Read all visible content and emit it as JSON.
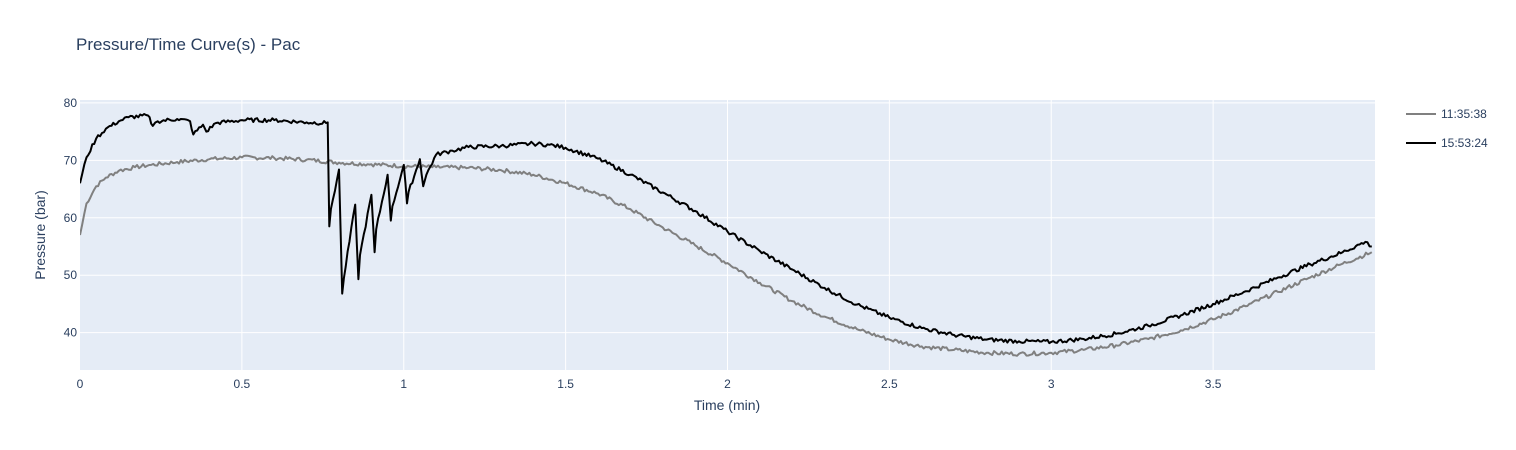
{
  "chart_data": {
    "type": "line",
    "title": "Pressure/Time Curve(s) - Pac",
    "xlabel": "Time (min)",
    "ylabel": "Pressure (bar)",
    "xlim": [
      0,
      4.0
    ],
    "ylim": [
      33.5,
      80.5
    ],
    "x_ticks": [
      0,
      0.5,
      1,
      1.5,
      2,
      2.5,
      3,
      3.5
    ],
    "x_tick_labels": [
      "0",
      "0.5",
      "1",
      "1.5",
      "2",
      "2.5",
      "3",
      "3.5"
    ],
    "y_ticks": [
      40,
      50,
      60,
      70,
      80
    ],
    "y_tick_labels": [
      "40",
      "50",
      "60",
      "70",
      "80"
    ],
    "grid": true,
    "legend_position": "top-right",
    "series": [
      {
        "name": "11:35:38",
        "color": "#808080",
        "x": [
          0,
          0.02,
          0.05,
          0.08,
          0.12,
          0.17,
          0.22,
          0.3,
          0.4,
          0.5,
          0.6,
          0.7,
          0.8,
          0.9,
          1.0,
          1.1,
          1.2,
          1.3,
          1.4,
          1.5,
          1.6,
          1.7,
          1.8,
          1.9,
          2.0,
          2.1,
          2.2,
          2.3,
          2.4,
          2.5,
          2.6,
          2.7,
          2.8,
          2.9,
          3.0,
          3.1,
          3.2,
          3.3,
          3.4,
          3.5,
          3.6,
          3.7,
          3.8,
          3.9,
          3.99
        ],
        "y": [
          57,
          62.5,
          65.5,
          67,
          68.2,
          68.8,
          69.2,
          69.7,
          70.2,
          70.5,
          70.4,
          70.1,
          69.6,
          69.3,
          69.0,
          68.8,
          68.7,
          68.3,
          67.5,
          66.0,
          64.2,
          61.5,
          58.3,
          55.2,
          52.1,
          48.7,
          45.5,
          42.8,
          40.6,
          38.8,
          37.6,
          37.0,
          36.5,
          36.3,
          36.5,
          37.0,
          37.8,
          38.9,
          40.4,
          42.3,
          44.6,
          47.1,
          49.6,
          52.0,
          54.0
        ]
      },
      {
        "name": "15:53:24",
        "color": "#000000",
        "x": [
          0,
          0.02,
          0.05,
          0.08,
          0.12,
          0.15,
          0.21,
          0.225,
          0.24,
          0.3,
          0.34,
          0.35,
          0.38,
          0.39,
          0.42,
          0.5,
          0.6,
          0.7,
          0.76,
          0.765,
          0.77,
          0.775,
          0.8,
          0.81,
          0.815,
          0.85,
          0.86,
          0.865,
          0.9,
          0.91,
          0.915,
          0.95,
          0.96,
          0.965,
          1.0,
          1.01,
          1.015,
          1.05,
          1.06,
          1.07,
          1.1,
          1.15,
          1.2,
          1.3,
          1.4,
          1.45,
          1.5,
          1.6,
          1.7,
          1.8,
          1.9,
          2.0,
          2.1,
          2.2,
          2.3,
          2.4,
          2.5,
          2.6,
          2.7,
          2.8,
          2.9,
          3.0,
          3.1,
          3.2,
          3.3,
          3.4,
          3.5,
          3.6,
          3.7,
          3.8,
          3.9,
          3.97,
          3.99
        ],
        "y": [
          66,
          70.5,
          73.8,
          75.5,
          76.8,
          77.5,
          77.8,
          76.0,
          76.8,
          77.2,
          76.8,
          74.5,
          76.2,
          75.0,
          76.5,
          77.0,
          77.0,
          76.6,
          76.5,
          76.6,
          58.5,
          61.5,
          68.4,
          46.8,
          49.5,
          62.3,
          49.3,
          53.5,
          64.0,
          54.0,
          58.0,
          67.5,
          59.5,
          62.0,
          69.2,
          62.5,
          64.5,
          70.2,
          65.5,
          67.5,
          71.0,
          71.7,
          72.3,
          72.5,
          72.9,
          72.7,
          72.2,
          70.3,
          67.5,
          64.4,
          61.2,
          57.6,
          54.2,
          51.0,
          47.8,
          44.9,
          42.6,
          40.8,
          39.6,
          38.8,
          38.5,
          38.4,
          38.9,
          39.8,
          41.2,
          43.0,
          45.0,
          47.2,
          49.6,
          51.9,
          54.0,
          55.8,
          55.0
        ]
      }
    ]
  }
}
